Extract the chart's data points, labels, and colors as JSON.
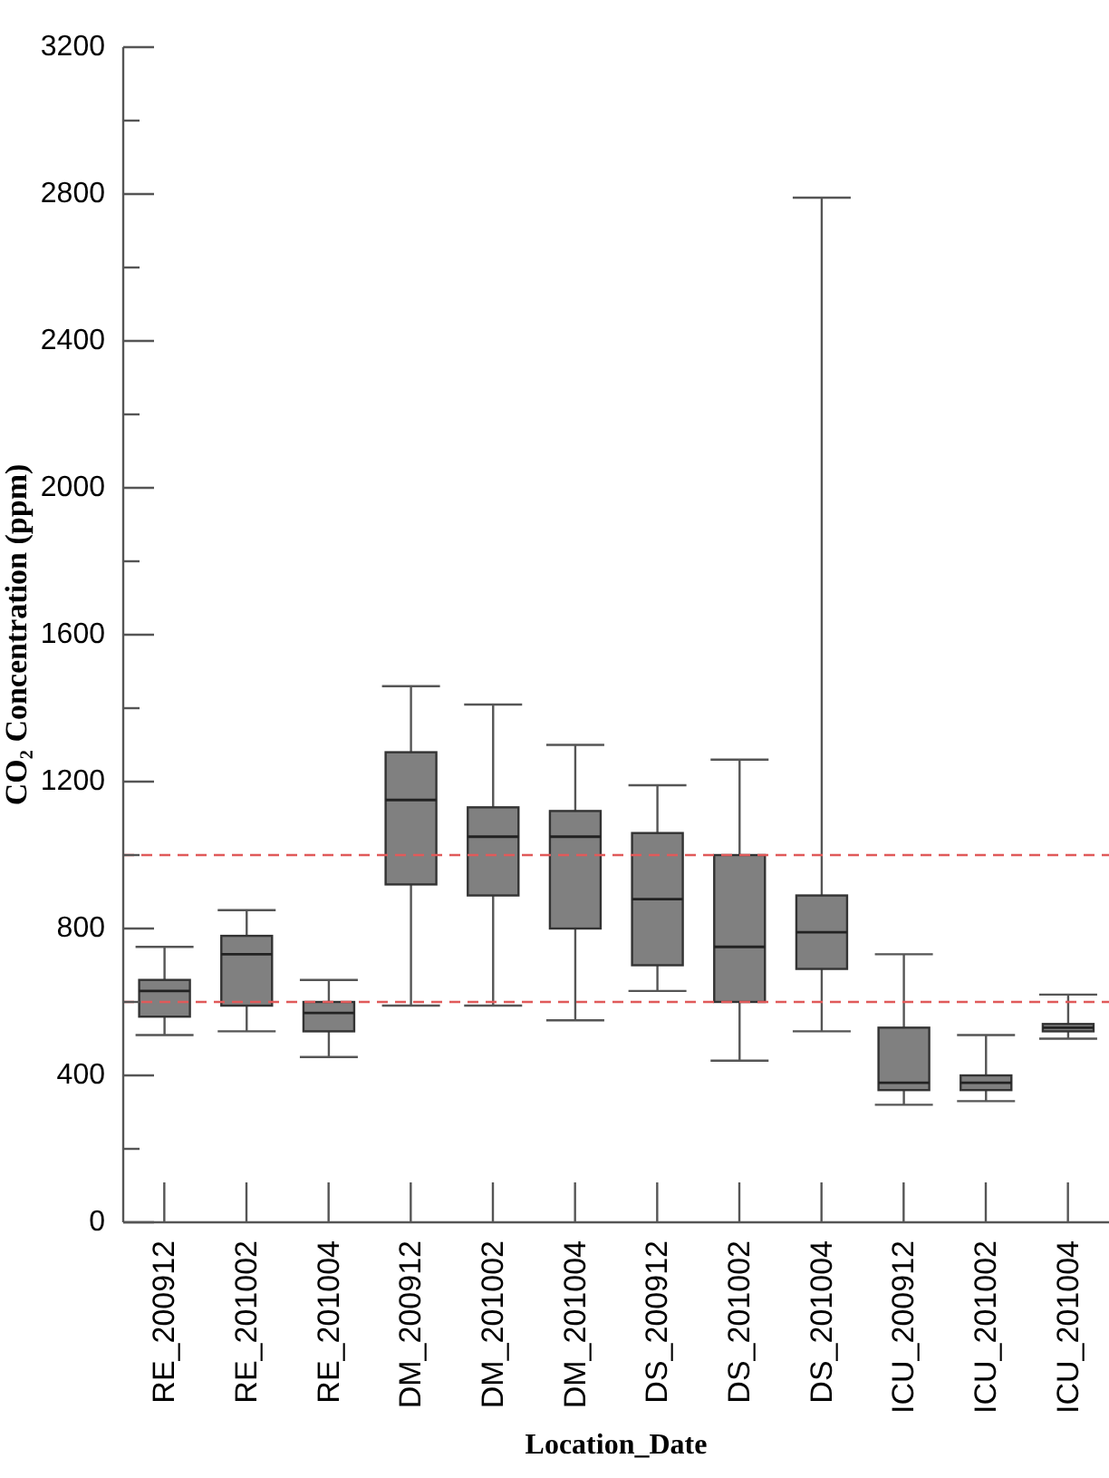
{
  "chart_data": {
    "type": "box",
    "ylabel": "CO₂ Concentration (ppm)",
    "xlabel": "Location_Date",
    "categories": [
      "RE_200912",
      "RE_201002",
      "RE_201004",
      "DM_200912",
      "DM_201002",
      "DM_201004",
      "DS_200912",
      "DS_201002",
      "DS_201004",
      "ICU_200912",
      "ICU_201002",
      "ICU_201004"
    ],
    "series": [
      {
        "color": "#808080",
        "boxes": [
          {
            "low": 510,
            "q1": 560,
            "median": 630,
            "q3": 660,
            "high": 750
          },
          {
            "low": 520,
            "q1": 590,
            "median": 730,
            "q3": 780,
            "high": 850
          },
          {
            "low": 450,
            "q1": 520,
            "median": 570,
            "q3": 600,
            "high": 660
          },
          {
            "low": 590,
            "q1": 920,
            "median": 1150,
            "q3": 1280,
            "high": 1460
          },
          {
            "low": 590,
            "q1": 890,
            "median": 1050,
            "q3": 1130,
            "high": 1410
          },
          {
            "low": 550,
            "q1": 800,
            "median": 1050,
            "q3": 1120,
            "high": 1300
          },
          {
            "low": 630,
            "q1": 700,
            "median": 880,
            "q3": 1060,
            "high": 1190
          },
          {
            "low": 440,
            "q1": 600,
            "median": 750,
            "q3": 1000,
            "high": 1260
          },
          {
            "low": 520,
            "q1": 690,
            "median": 790,
            "q3": 890,
            "high": 2790
          },
          {
            "low": 320,
            "q1": 360,
            "median": 380,
            "q3": 530,
            "high": 730
          },
          {
            "low": 330,
            "q1": 360,
            "median": 380,
            "q3": 400,
            "high": 510
          },
          {
            "low": 500,
            "q1": 520,
            "median": 530,
            "q3": 540,
            "high": 620
          }
        ]
      }
    ],
    "ylim": [
      0,
      3200
    ],
    "yticks": [
      0,
      {
        "value": 200,
        "label": null
      },
      400,
      {
        "value": 600,
        "label": null
      },
      800,
      {
        "value": 1000,
        "label": null
      },
      1200,
      {
        "value": 1400,
        "label": null
      },
      1600,
      {
        "value": 1800,
        "label": null
      },
      2000,
      {
        "value": 2200,
        "label": null
      },
      2400,
      {
        "value": 2600,
        "label": null
      },
      2800,
      {
        "value": 3000,
        "label": null
      },
      3200
    ],
    "grid": false,
    "ref_lines": [
      {
        "axis": "y",
        "value": 600,
        "color": "#e05a5a",
        "line_style": "dashed"
      },
      {
        "axis": "y",
        "value": 1000,
        "color": "#e05a5a",
        "line_style": "dashed"
      }
    ]
  }
}
